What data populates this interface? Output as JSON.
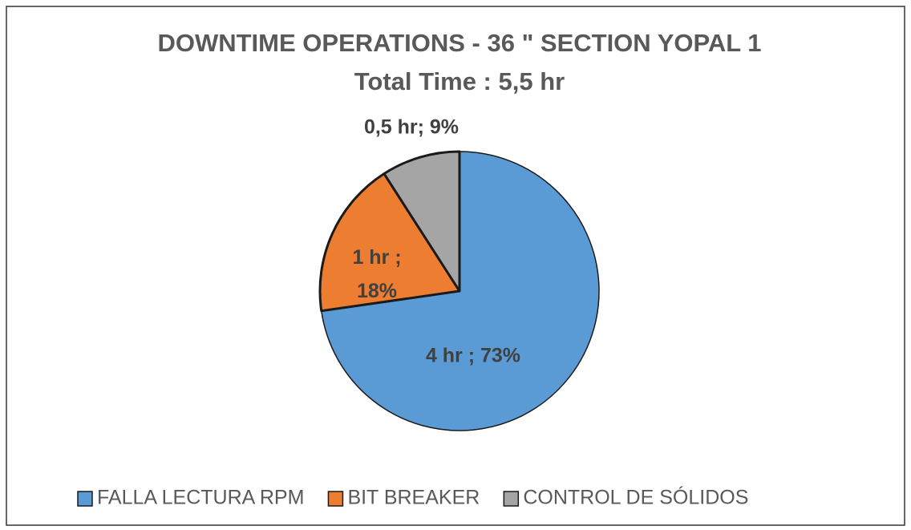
{
  "chart_data": {
    "type": "pie",
    "title": "DOWNTIME OPERATIONS - 36 \" SECTION YOPAL 1",
    "subtitle": "Total Time : 5,5 hr",
    "categories": [
      "FALLA LECTURA RPM",
      "BIT BREAKER",
      "CONTROL DE SÓLIDOS"
    ],
    "values": [
      4,
      1,
      0.5
    ],
    "value_labels": [
      "4 hr ; 73%",
      "1 hr ; 18%",
      "0,5 hr; 9%"
    ],
    "colors": [
      "#5b9bd5",
      "#ed7d31",
      "#a5a5a5"
    ],
    "legend": "bottom"
  }
}
